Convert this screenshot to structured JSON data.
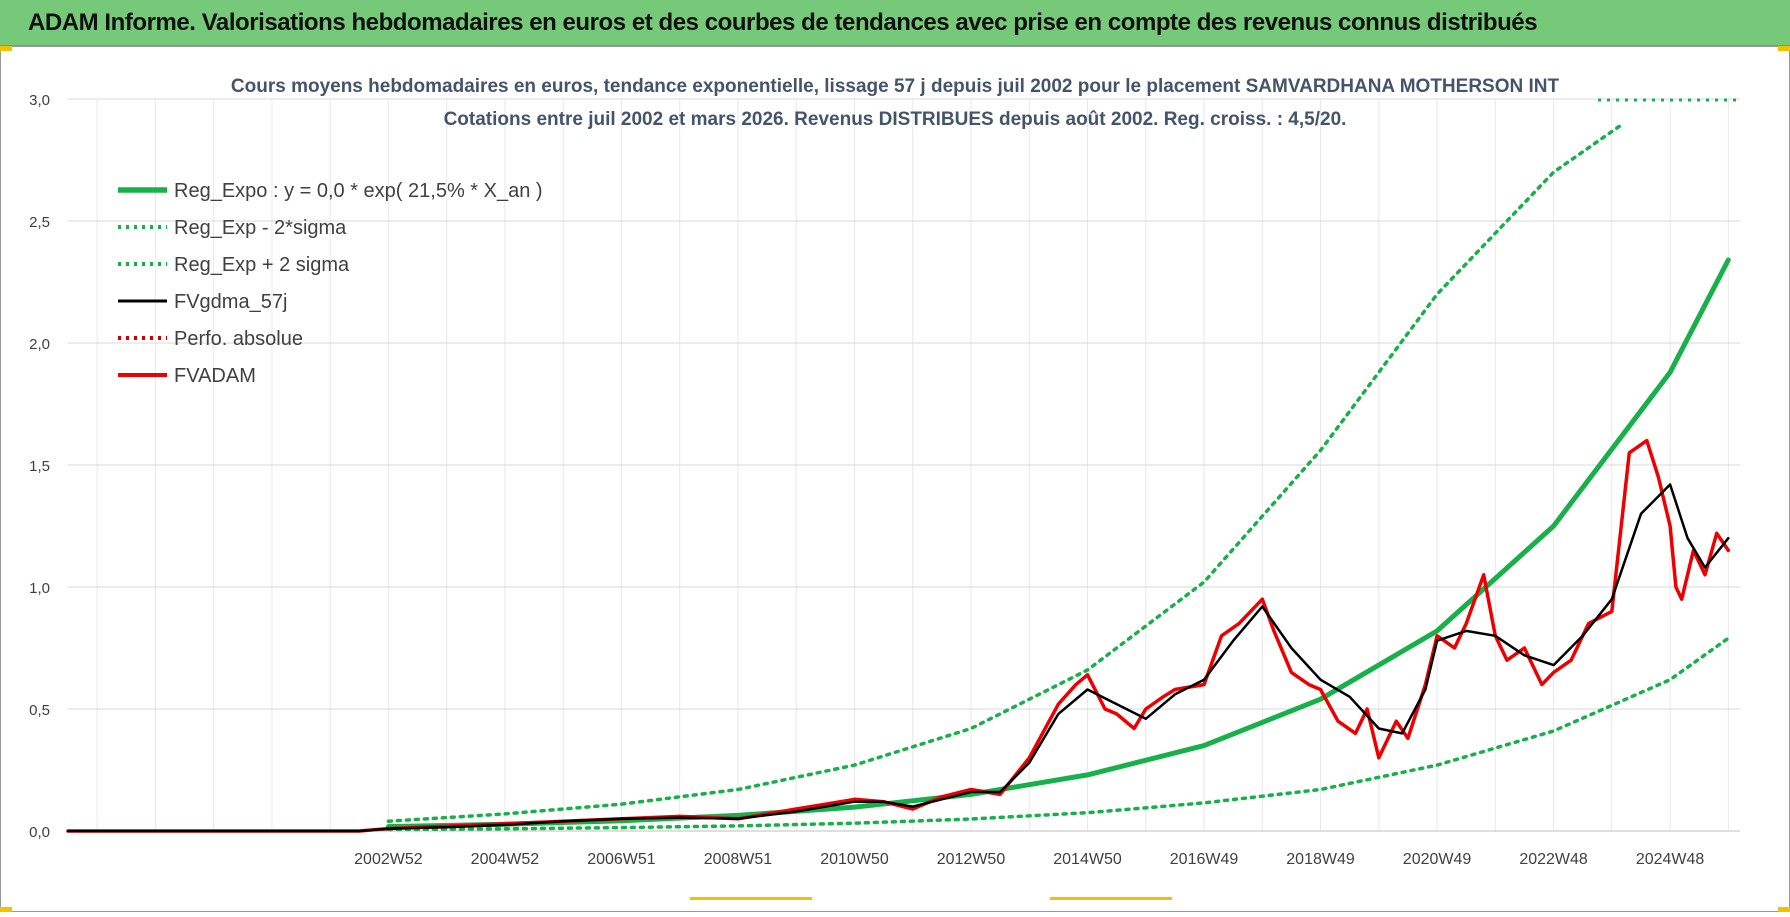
{
  "banner": {
    "title": "ADAM Informe. Valorisations hebdomadaires en euros et des courbes de tendances avec prise en compte des revenus connus distribués"
  },
  "colors": {
    "banner_bg": "#77c97a",
    "reg_green": "#18b04a",
    "adam_red": "#ee0000",
    "gdma_black": "#000000",
    "grid": "#d9d9d9",
    "text": "#404040",
    "accent_yellow": "#f2c200"
  },
  "chart_data": {
    "type": "line",
    "title": "Cours moyens hebdomadaires en euros, tendance exponentielle, lissage 57 j depuis juil 2002 pour le placement SAMVARDHANA MOTHERSON INT",
    "subtitle": "Cotations entre juil 2002 et mars 2026. Revenus DISTRIBUES depuis août 2002. Reg. croiss. : 4,5/20.",
    "xlabel": "",
    "ylabel": "",
    "xlim": [
      1997.5,
      2026.2
    ],
    "ylim": [
      0,
      3
    ],
    "y_ticks": [
      "0,0",
      "0,5",
      "1,0",
      "1,5",
      "2,0",
      "2,5",
      "3,0"
    ],
    "x_ticks": [
      {
        "label": "2002W52",
        "x": 2003.0
      },
      {
        "label": "2004W52",
        "x": 2005.0
      },
      {
        "label": "2006W51",
        "x": 2007.0
      },
      {
        "label": "2008W51",
        "x": 2009.0
      },
      {
        "label": "2010W50",
        "x": 2011.0
      },
      {
        "label": "2012W50",
        "x": 2013.0
      },
      {
        "label": "2014W50",
        "x": 2015.0
      },
      {
        "label": "2016W49",
        "x": 2017.0
      },
      {
        "label": "2018W49",
        "x": 2019.0
      },
      {
        "label": "2020W49",
        "x": 2021.0
      },
      {
        "label": "2022W48",
        "x": 2023.0
      },
      {
        "label": "2024W48",
        "x": 2025.0
      }
    ],
    "legend_position": "top-left",
    "series": [
      {
        "name": "Reg_Expo : y = 0,0 * exp( 21,5% *  X_an )",
        "style": "solid-thick",
        "color": "#18b04a",
        "x": [
          2003,
          2005,
          2007,
          2009,
          2011,
          2013,
          2015,
          2017,
          2019,
          2021,
          2023,
          2025,
          2026
        ],
        "values": [
          0.018,
          0.028,
          0.042,
          0.064,
          0.098,
          0.15,
          0.23,
          0.35,
          0.54,
          0.82,
          1.25,
          1.88,
          2.34
        ]
      },
      {
        "name": "Reg_Exp - 2*sigma",
        "style": "dotted",
        "color": "#18b04a",
        "x": [
          2003,
          2005,
          2007,
          2009,
          2011,
          2013,
          2015,
          2017,
          2019,
          2021,
          2023,
          2025,
          2026
        ],
        "values": [
          0.006,
          0.009,
          0.014,
          0.021,
          0.032,
          0.049,
          0.075,
          0.115,
          0.17,
          0.27,
          0.41,
          0.62,
          0.79
        ]
      },
      {
        "name": "Reg_Exp + 2 sigma",
        "style": "dotted",
        "color": "#18b04a",
        "x": [
          2003,
          2005,
          2007,
          2009,
          2011,
          2013,
          2015,
          2017,
          2019,
          2021,
          2023,
          2024.2
        ],
        "values": [
          0.04,
          0.07,
          0.11,
          0.17,
          0.27,
          0.42,
          0.66,
          1.02,
          1.56,
          2.2,
          2.7,
          2.9
        ]
      },
      {
        "name": "FVgdma_57j",
        "style": "solid-thin",
        "color": "#000000",
        "x": [
          1997.5,
          2002.5,
          2003,
          2004,
          2005,
          2006,
          2007,
          2008,
          2009,
          2010,
          2010.5,
          2011,
          2011.5,
          2012,
          2012.5,
          2013,
          2013.5,
          2014,
          2014.5,
          2015,
          2015.5,
          2016,
          2016.5,
          2017,
          2017.5,
          2018,
          2018.5,
          2019,
          2019.5,
          2020,
          2020.4,
          2020.8,
          2021,
          2021.5,
          2022,
          2022.5,
          2023,
          2023.5,
          2024,
          2024.5,
          2025,
          2025.3,
          2025.6,
          2026
        ],
        "values": [
          0.0,
          0.0,
          0.01,
          0.015,
          0.025,
          0.04,
          0.05,
          0.055,
          0.05,
          0.08,
          0.1,
          0.12,
          0.12,
          0.1,
          0.13,
          0.16,
          0.16,
          0.28,
          0.48,
          0.58,
          0.52,
          0.46,
          0.56,
          0.62,
          0.78,
          0.92,
          0.75,
          0.62,
          0.55,
          0.42,
          0.4,
          0.58,
          0.78,
          0.82,
          0.8,
          0.72,
          0.68,
          0.8,
          0.95,
          1.3,
          1.42,
          1.2,
          1.08,
          1.2
        ]
      },
      {
        "name": "Perfo. absolue",
        "style": "dotted",
        "color": "#cc0000",
        "x": [],
        "values": []
      },
      {
        "name": "FVADAM",
        "style": "solid-medium",
        "color": "#ee0000",
        "x": [
          1997.5,
          2002.5,
          2003,
          2004,
          2005,
          2006,
          2007,
          2008,
          2009,
          2010,
          2010.5,
          2011,
          2011.5,
          2012,
          2012.5,
          2013,
          2013.5,
          2014,
          2014.5,
          2014.8,
          2015,
          2015.3,
          2015.5,
          2015.8,
          2016,
          2016.3,
          2016.5,
          2017,
          2017.3,
          2017.6,
          2018,
          2018.2,
          2018.5,
          2018.8,
          2019,
          2019.3,
          2019.6,
          2019.8,
          2020,
          2020.3,
          2020.5,
          2020.8,
          2021,
          2021.3,
          2021.5,
          2021.8,
          2022,
          2022.2,
          2022.5,
          2022.8,
          2023,
          2023.3,
          2023.6,
          2024,
          2024.3,
          2024.6,
          2024.8,
          2025,
          2025.1,
          2025.2,
          2025.4,
          2025.6,
          2025.8,
          2026
        ],
        "values": [
          0.0,
          0.0,
          0.01,
          0.02,
          0.03,
          0.04,
          0.05,
          0.06,
          0.05,
          0.09,
          0.11,
          0.13,
          0.12,
          0.09,
          0.14,
          0.17,
          0.15,
          0.3,
          0.52,
          0.6,
          0.64,
          0.5,
          0.48,
          0.42,
          0.5,
          0.55,
          0.58,
          0.6,
          0.8,
          0.85,
          0.95,
          0.82,
          0.65,
          0.6,
          0.58,
          0.45,
          0.4,
          0.5,
          0.3,
          0.45,
          0.38,
          0.6,
          0.8,
          0.75,
          0.85,
          1.05,
          0.8,
          0.7,
          0.75,
          0.6,
          0.65,
          0.7,
          0.85,
          0.9,
          1.55,
          1.6,
          1.45,
          1.25,
          1.0,
          0.95,
          1.15,
          1.05,
          1.22,
          1.15
        ]
      }
    ]
  }
}
